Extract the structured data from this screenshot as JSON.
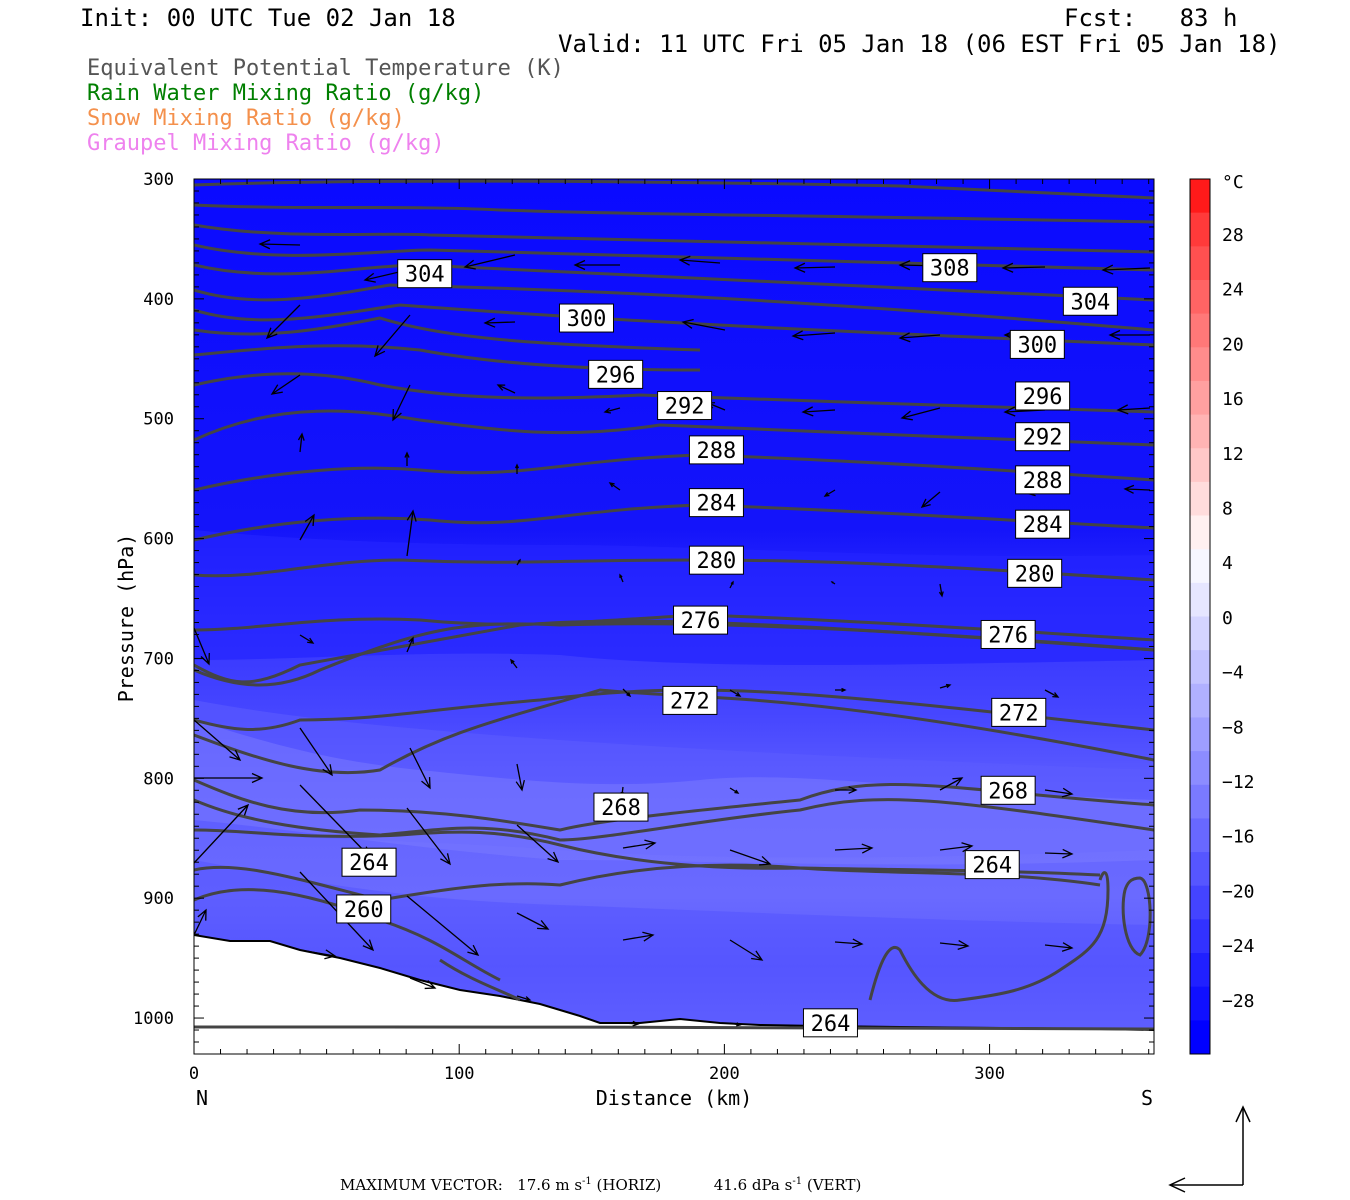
{
  "header": {
    "init": "Init: 00 UTC Tue 02 Jan 18",
    "fcst_label": "Fcst:",
    "fcst_value": "83 h",
    "valid": "Valid: 11 UTC Fri 05 Jan 18 (06 EST Fri 05 Jan 18)"
  },
  "legend": [
    {
      "label": "Equivalent Potential Temperature (K)",
      "color": "#555555"
    },
    {
      "label": "Rain Water Mixing Ratio (g/kg)",
      "color": "#007f00"
    },
    {
      "label": "Snow Mixing Ratio (g/kg)",
      "color": "#f4904c"
    },
    {
      "label": "Graupel Mixing Ratio (g/kg)",
      "color": "#ee82ee"
    }
  ],
  "chart_data": {
    "type": "contour cross-section",
    "ylabel": "Pressure (hPa)",
    "xlabel": "Distance (km)",
    "x_endpoints": {
      "left": "N",
      "right": "S"
    },
    "xlim": [
      0,
      362
    ],
    "ylim_hpa": [
      1030,
      300
    ],
    "x_ticks": [
      0,
      100,
      200,
      300
    ],
    "y_ticks": [
      300,
      400,
      500,
      600,
      700,
      800,
      900,
      1000
    ],
    "theta_e_labels": [
      {
        "value": "304",
        "x": 87,
        "p": 379
      },
      {
        "value": "308",
        "x": 285,
        "p": 374
      },
      {
        "value": "304",
        "x": 338,
        "p": 402
      },
      {
        "value": "300",
        "x": 148,
        "p": 416
      },
      {
        "value": "300",
        "x": 318,
        "p": 438
      },
      {
        "value": "296",
        "x": 159,
        "p": 463
      },
      {
        "value": "296",
        "x": 320,
        "p": 481
      },
      {
        "value": "292",
        "x": 185,
        "p": 489
      },
      {
        "value": "292",
        "x": 320,
        "p": 515
      },
      {
        "value": "288",
        "x": 197,
        "p": 526
      },
      {
        "value": "288",
        "x": 320,
        "p": 551
      },
      {
        "value": "284",
        "x": 197,
        "p": 570
      },
      {
        "value": "284",
        "x": 320,
        "p": 588
      },
      {
        "value": "280",
        "x": 197,
        "p": 618
      },
      {
        "value": "280",
        "x": 317,
        "p": 629
      },
      {
        "value": "276",
        "x": 191,
        "p": 668
      },
      {
        "value": "276",
        "x": 307,
        "p": 680
      },
      {
        "value": "272",
        "x": 187,
        "p": 735
      },
      {
        "value": "272",
        "x": 311,
        "p": 745
      },
      {
        "value": "268",
        "x": 161,
        "p": 824
      },
      {
        "value": "268",
        "x": 307,
        "p": 810
      },
      {
        "value": "264",
        "x": 66,
        "p": 870
      },
      {
        "value": "264",
        "x": 301,
        "p": 872
      },
      {
        "value": "260",
        "x": 64,
        "p": 909
      },
      {
        "value": "264",
        "x": 240,
        "p": 1004
      }
    ],
    "colorbar": {
      "unit": "°C",
      "labels": [
        "28",
        "24",
        "20",
        "16",
        "12",
        "8",
        "4",
        "0",
        "−4",
        "−8",
        "−12",
        "−16",
        "−20",
        "−24",
        "−28"
      ],
      "colors": [
        "#ff1a1a",
        "#ff3a3a",
        "#ff5050",
        "#ff6464",
        "#ff7878",
        "#ff8c8c",
        "#ffa0a0",
        "#ffb4b4",
        "#ffc8c8",
        "#ffdcdc",
        "#fff0f0",
        "#f6f6ff",
        "#e6e6ff",
        "#d4d4ff",
        "#c2c2ff",
        "#b0b0ff",
        "#9e9eff",
        "#8c8cff",
        "#7a7aff",
        "#6868ff",
        "#5656ff",
        "#4444ff",
        "#3232ff",
        "#2020ff",
        "#1010ff",
        "#0000ff"
      ]
    }
  },
  "footer": {
    "max_vector_label": "MAXIMUM VECTOR:",
    "horiz_value": "17.6 m s",
    "horiz_suffix": " (HORIZ)",
    "vert_value": "41.6 dPa s",
    "vert_suffix": " (VERT)",
    "exponent": "-1"
  }
}
